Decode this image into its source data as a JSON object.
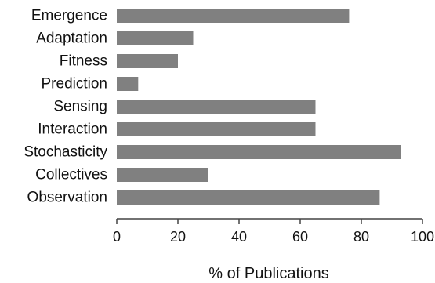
{
  "chart_data": {
    "type": "bar",
    "orientation": "horizontal",
    "categories": [
      "Emergence",
      "Adaptation",
      "Fitness",
      "Prediction",
      "Sensing",
      "Interaction",
      "Stochasticity",
      "Collectives",
      "Observation"
    ],
    "values": [
      76,
      25,
      20,
      7,
      65,
      65,
      93,
      30,
      86
    ],
    "xlabel": "% of Publications",
    "ylabel": "",
    "xlim": [
      0,
      100
    ],
    "xticks": [
      0,
      20,
      40,
      60,
      80,
      100
    ],
    "grid": false,
    "legend": "none",
    "bar_color": "#808080",
    "axis_color": "#444444"
  }
}
